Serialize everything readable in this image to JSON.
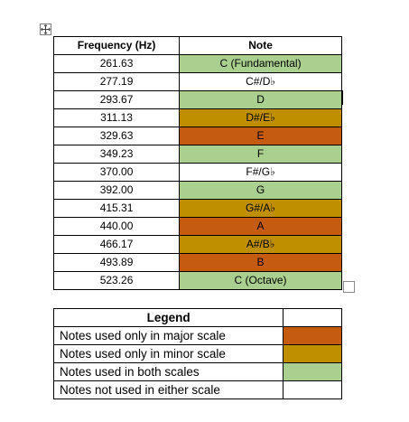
{
  "colors": {
    "major_only": "#c55a11",
    "minor_only": "#bf8f00",
    "both_scales": "#a9d08e",
    "neither": "#ffffff"
  },
  "table": {
    "headers": {
      "frequency": "Frequency (Hz)",
      "note": "Note"
    },
    "rows": [
      {
        "frequency": "261.63",
        "note": "C (Fundamental)",
        "category": "both"
      },
      {
        "frequency": "277.19",
        "note": "C#/D♭",
        "category": "none"
      },
      {
        "frequency": "293.67",
        "note": "D",
        "category": "both"
      },
      {
        "frequency": "311.13",
        "note": "D#/E♭",
        "category": "minor"
      },
      {
        "frequency": "329.63",
        "note": "E",
        "category": "major"
      },
      {
        "frequency": "349.23",
        "note": "F",
        "category": "both"
      },
      {
        "frequency": "370.00",
        "note": "F#/G♭",
        "category": "none"
      },
      {
        "frequency": "392.00",
        "note": "G",
        "category": "both"
      },
      {
        "frequency": "415.31",
        "note": "G#/A♭",
        "category": "minor"
      },
      {
        "frequency": "440.00",
        "note": "A",
        "category": "major"
      },
      {
        "frequency": "466.17",
        "note": "A#/B♭",
        "category": "minor"
      },
      {
        "frequency": "493.89",
        "note": "B",
        "category": "major"
      },
      {
        "frequency": "523.26",
        "note": "C (Octave)",
        "category": "both"
      }
    ]
  },
  "legend": {
    "title": "Legend",
    "items": [
      {
        "label": "Notes used only in major scale",
        "category": "major"
      },
      {
        "label": "Notes used only in minor scale",
        "category": "minor"
      },
      {
        "label": "Notes used in both scales",
        "category": "both"
      },
      {
        "label": "Notes not used in either scale",
        "category": "none"
      }
    ]
  }
}
